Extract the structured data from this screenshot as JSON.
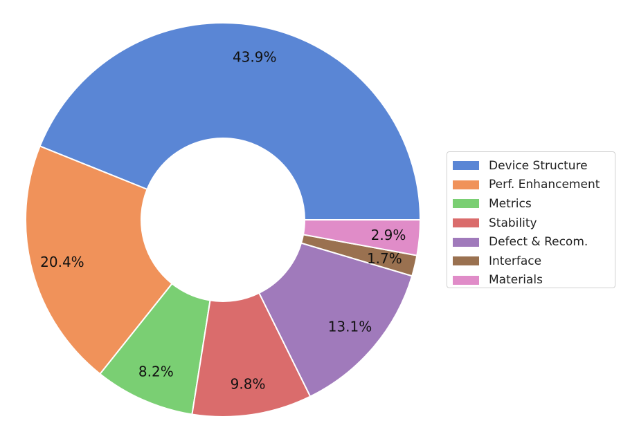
{
  "chart_data": {
    "type": "pie",
    "style": "donut",
    "categories": [
      "Device Structure",
      "Perf. Enhancement",
      "Metrics",
      "Stability",
      "Defect & Recom.",
      "Interface",
      "Materials"
    ],
    "values": [
      43.9,
      20.4,
      8.2,
      9.8,
      13.1,
      1.7,
      2.9
    ],
    "labels": [
      "43.9%",
      "20.4%",
      "8.2%",
      "9.8%",
      "13.1%",
      "1.7%",
      "2.9%"
    ],
    "colors": [
      "#5a86d5",
      "#f0925a",
      "#7acf73",
      "#da6c6c",
      "#a07abb",
      "#9a7150",
      "#e08cc8"
    ],
    "legend_position": "right",
    "title": "",
    "xlabel": "",
    "ylabel": ""
  }
}
